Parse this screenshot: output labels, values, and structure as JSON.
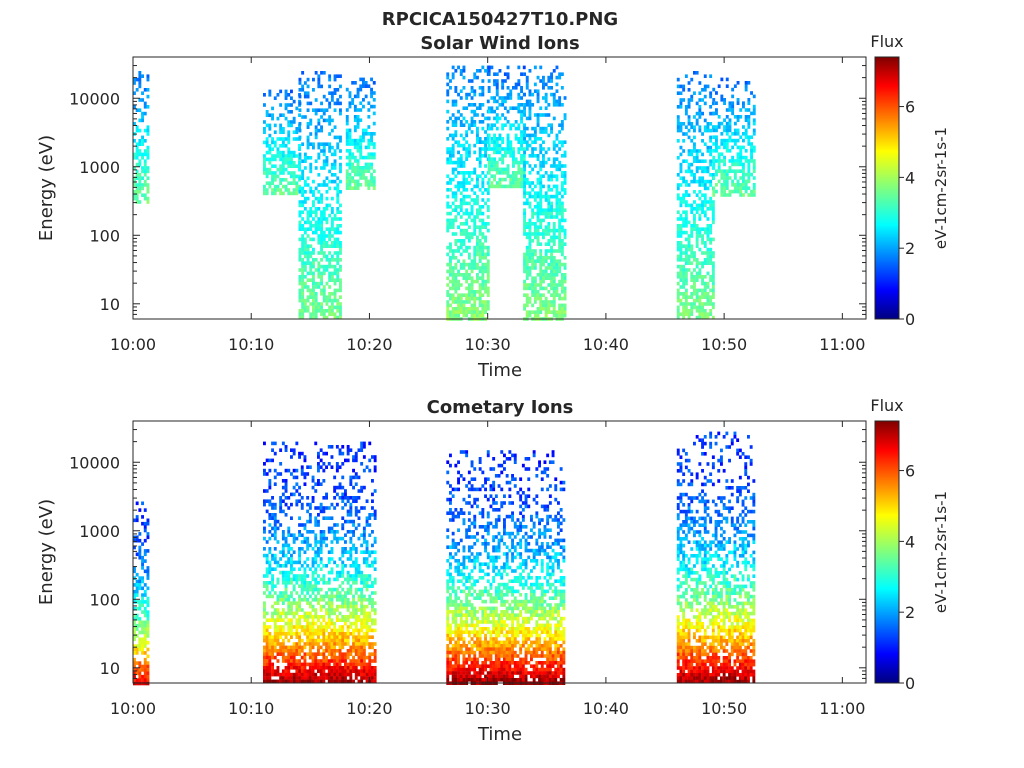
{
  "figure_title": "RPCICA150427T10.PNG",
  "colormap": [
    "#00007f",
    "#0000ff",
    "#007fff",
    "#00ffff",
    "#7fff7f",
    "#ffff00",
    "#ff7f00",
    "#ff0000",
    "#7f0000"
  ],
  "chart_data": [
    {
      "type": "heatmap",
      "title": "Solar Wind Ions",
      "xlabel": "Time",
      "ylabel": "Energy (eV)",
      "x_ticks": [
        "10:00",
        "10:10",
        "10:20",
        "10:30",
        "10:40",
        "10:50",
        "11:00"
      ],
      "x_range_minutes": [
        0,
        62
      ],
      "y_scale": "log",
      "y_ticks": [
        "10",
        "100",
        "1000",
        "10000"
      ],
      "y_range_ev": [
        6,
        40000
      ],
      "colorbar": {
        "label": "Flux",
        "units": "eV-1cm-2sr-1s-1",
        "range": [
          0,
          7.4
        ],
        "ticks": [
          "0",
          "2",
          "4",
          "6"
        ]
      },
      "bursts": [
        {
          "t_start": 0.0,
          "t_end": 1.3,
          "e_low": 300,
          "e_high": 25000,
          "flux": 2.1
        },
        {
          "t_start": 11.0,
          "t_end": 14.0,
          "e_low": 400,
          "e_high": 15000,
          "flux": 1.9
        },
        {
          "t_start": 14.0,
          "t_end": 17.5,
          "e_low": 6,
          "e_high": 25000,
          "flux": 2.2
        },
        {
          "t_start": 18.0,
          "t_end": 20.5,
          "e_low": 500,
          "e_high": 20000,
          "flux": 1.8
        },
        {
          "t_start": 26.5,
          "t_end": 30.0,
          "e_low": 6,
          "e_high": 30000,
          "flux": 2.6
        },
        {
          "t_start": 30.0,
          "t_end": 33.0,
          "e_low": 500,
          "e_high": 30000,
          "flux": 1.8
        },
        {
          "t_start": 33.0,
          "t_end": 36.5,
          "e_low": 6,
          "e_high": 30000,
          "flux": 2.5
        },
        {
          "t_start": 46.0,
          "t_end": 49.0,
          "e_low": 6,
          "e_high": 25000,
          "flux": 2.4
        },
        {
          "t_start": 49.0,
          "t_end": 52.5,
          "e_low": 400,
          "e_high": 20000,
          "flux": 1.8
        }
      ]
    },
    {
      "type": "heatmap",
      "title": "Cometary Ions",
      "xlabel": "Time",
      "ylabel": "Energy (eV)",
      "x_ticks": [
        "10:00",
        "10:10",
        "10:20",
        "10:30",
        "10:40",
        "10:50",
        "11:00"
      ],
      "x_range_minutes": [
        0,
        62
      ],
      "y_scale": "log",
      "y_ticks": [
        "10",
        "100",
        "1000",
        "10000"
      ],
      "y_range_ev": [
        6,
        40000
      ],
      "colorbar": {
        "label": "Flux",
        "units": "eV-1cm-2sr-1s-1",
        "range": [
          0,
          7.4
        ],
        "ticks": [
          "0",
          "2",
          "4",
          "6"
        ]
      },
      "bursts": [
        {
          "t_start": 0.0,
          "t_end": 1.3,
          "e_low": 6,
          "e_high": 3000,
          "flux": 4.5
        },
        {
          "t_start": 11.0,
          "t_end": 20.5,
          "e_low": 6,
          "e_high": 20000,
          "flux": 5.0
        },
        {
          "t_start": 26.5,
          "t_end": 36.5,
          "e_low": 6,
          "e_high": 15000,
          "flux": 5.0
        },
        {
          "t_start": 46.0,
          "t_end": 52.5,
          "e_low": 6,
          "e_high": 28000,
          "flux": 5.0
        }
      ]
    }
  ]
}
